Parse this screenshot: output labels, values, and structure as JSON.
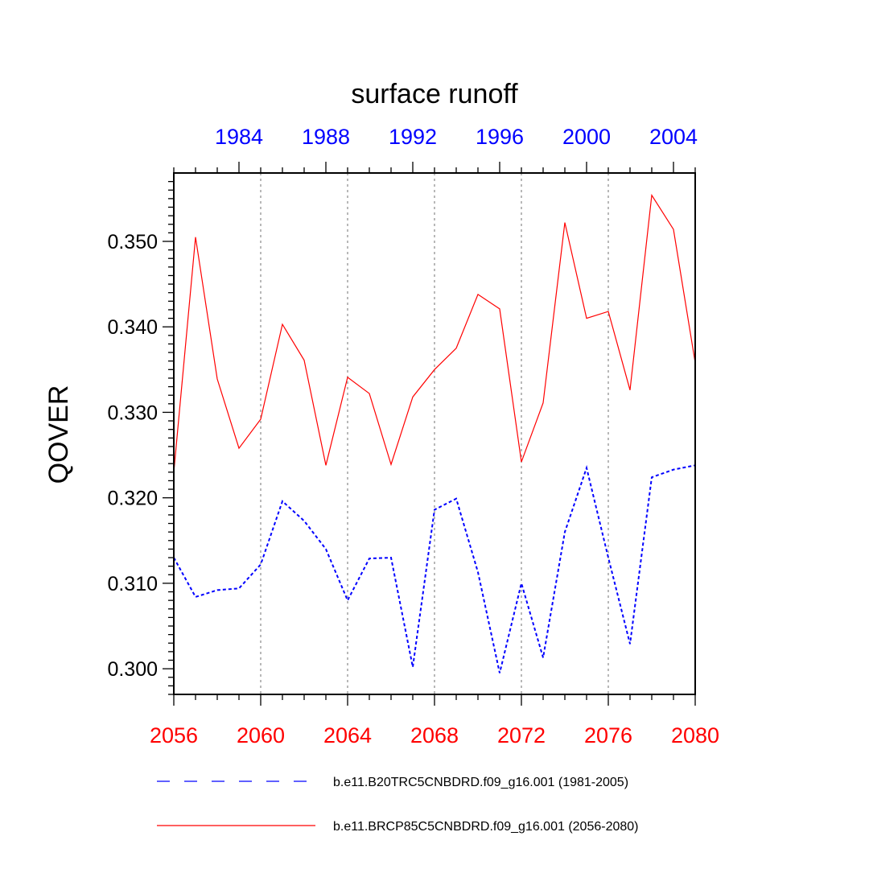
{
  "chart_data": {
    "type": "line",
    "title": "surface runoff",
    "ylabel": "QOVER",
    "ylim": [
      0.297,
      0.358
    ],
    "yticks": [
      0.3,
      0.31,
      0.32,
      0.33,
      0.34,
      0.35
    ],
    "ytick_labels": [
      "0.300",
      "0.310",
      "0.320",
      "0.330",
      "0.340",
      "0.350"
    ],
    "bottom_axis": {
      "range": [
        2056,
        2080
      ],
      "ticks": [
        2056,
        2060,
        2064,
        2068,
        2072,
        2076,
        2080
      ],
      "labels": [
        "2056",
        "2060",
        "2064",
        "2068",
        "2072",
        "2076",
        "2080"
      ],
      "color": "#ff0000"
    },
    "top_axis": {
      "range": [
        1981,
        2005
      ],
      "ticks": [
        1984,
        1988,
        1992,
        1996,
        2000,
        2004
      ],
      "labels": [
        "1984",
        "1988",
        "1992",
        "1996",
        "2000",
        "2004"
      ],
      "color": "#0000ff"
    },
    "grid": "vertical dotted at bottom-axis major ticks",
    "series": [
      {
        "name": "b.e11.B20TRC5CNBDRD.f09_g16.001 (1981-2005)",
        "color": "#0000ff",
        "style": "dashed",
        "x": [
          1981,
          1982,
          1983,
          1984,
          1985,
          1986,
          1987,
          1988,
          1989,
          1990,
          1991,
          1992,
          1993,
          1994,
          1995,
          1996,
          1997,
          1998,
          1999,
          2000,
          2001,
          2002,
          2003,
          2004,
          2005
        ],
        "values": [
          0.313,
          0.3084,
          0.3092,
          0.3094,
          0.3122,
          0.3196,
          0.3173,
          0.314,
          0.308,
          0.3129,
          0.313,
          0.3002,
          0.3186,
          0.3199,
          0.3113,
          0.2995,
          0.31,
          0.3013,
          0.316,
          0.3235,
          0.313,
          0.3029,
          0.3224,
          0.3233,
          0.3238
        ]
      },
      {
        "name": "b.e11.BRCP85C5CNBDRD.f09_g16.001 (2056-2080)",
        "color": "#ff0000",
        "style": "solid",
        "x": [
          2056,
          2057,
          2058,
          2059,
          2060,
          2061,
          2062,
          2063,
          2064,
          2065,
          2066,
          2067,
          2068,
          2069,
          2070,
          2071,
          2072,
          2073,
          2074,
          2075,
          2076,
          2077,
          2078,
          2079,
          2080
        ],
        "values": [
          0.323,
          0.3505,
          0.3339,
          0.3258,
          0.3292,
          0.3403,
          0.3361,
          0.3238,
          0.3341,
          0.3322,
          0.3239,
          0.3318,
          0.335,
          0.3375,
          0.3438,
          0.3421,
          0.3242,
          0.3311,
          0.3522,
          0.341,
          0.3418,
          0.3326,
          0.3554,
          0.3514,
          0.3358
        ]
      }
    ],
    "legend": {
      "placement": "bottom",
      "entries": [
        {
          "label": "b.e11.B20TRC5CNBDRD.f09_g16.001 (1981-2005)",
          "color": "#0000ff",
          "style": "dashed"
        },
        {
          "label": "b.e11.BRCP85C5CNBDRD.f09_g16.001 (2056-2080)",
          "color": "#ff0000",
          "style": "solid"
        }
      ]
    }
  }
}
